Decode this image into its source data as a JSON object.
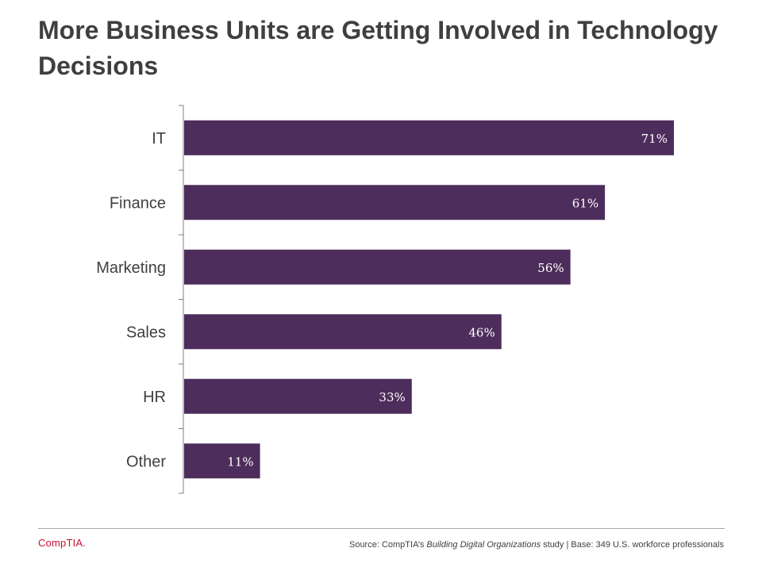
{
  "title": "More Business Units are Getting Involved in Technology Decisions",
  "colors": {
    "bar": "#4d2d5b",
    "axis": "#7f7f7f",
    "label_text": "#404040",
    "bar_label": "#ffffff",
    "brand": "#c8102e"
  },
  "chart_data": {
    "type": "bar",
    "orientation": "horizontal",
    "categories": [
      "IT",
      "Finance",
      "Marketing",
      "Sales",
      "HR",
      "Other"
    ],
    "values": [
      71,
      61,
      56,
      46,
      33,
      11
    ],
    "data_labels": [
      "71%",
      "61%",
      "56%",
      "46%",
      "33%",
      "11%"
    ],
    "xlim": [
      0,
      100
    ],
    "grid": false
  },
  "footer": {
    "logo": "CompTIA.",
    "source_prefix": "Source: CompTIA’s ",
    "source_study": "Building Digital Organizations",
    "source_suffix": " study | Base: 349 U.S. workforce professionals"
  }
}
